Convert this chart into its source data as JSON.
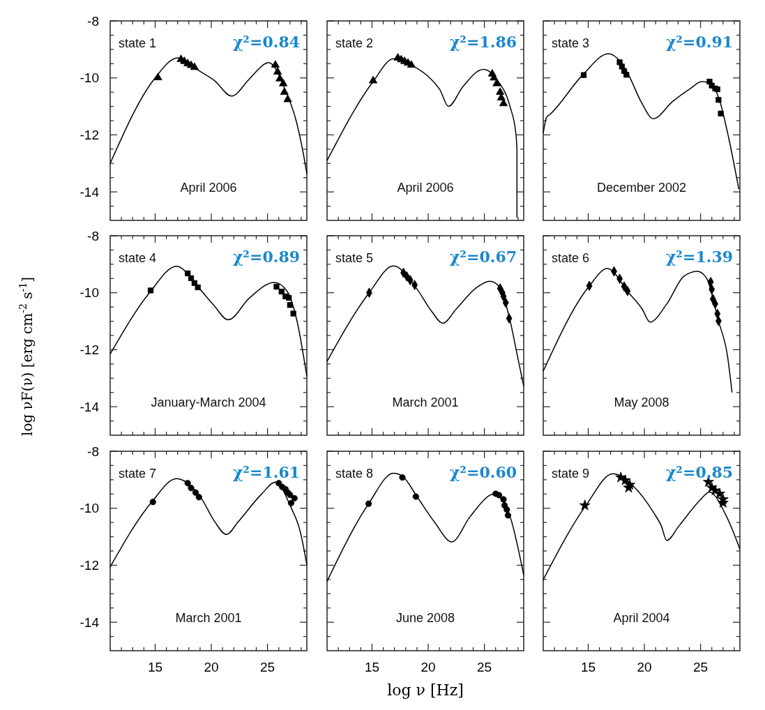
{
  "chart_data": [
    {
      "type": "line",
      "xlim": [
        11,
        28.5
      ],
      "ylim": [
        -15,
        -8
      ],
      "tick_labels": "y",
      "xticks": [
        {
          "value": 12,
          "label": null
        },
        {
          "value": 13,
          "label": null
        },
        {
          "value": 14,
          "label": null
        },
        15,
        {
          "value": 16,
          "label": null
        },
        {
          "value": 17,
          "label": null
        },
        {
          "value": 18,
          "label": null
        },
        {
          "value": 19,
          "label": null
        },
        20,
        {
          "value": 21,
          "label": null
        },
        {
          "value": 22,
          "label": null
        },
        {
          "value": 23,
          "label": null
        },
        {
          "value": 24,
          "label": null
        },
        25,
        {
          "value": 26,
          "label": null
        },
        {
          "value": 27,
          "label": null
        },
        {
          "value": 28,
          "label": null
        }
      ],
      "yticks": [
        -14,
        {
          "value": -14.5,
          "label": null
        },
        {
          "value": -13.5,
          "label": null
        },
        {
          "value": -13,
          "label": null
        },
        {
          "value": -12.5,
          "label": null
        },
        -12,
        {
          "value": -11.5,
          "label": null
        },
        {
          "value": -11,
          "label": null
        },
        {
          "value": -10.5,
          "label": null
        },
        -10,
        {
          "value": -9.5,
          "label": null
        },
        {
          "value": -9,
          "label": null
        },
        {
          "value": -8.5,
          "label": null
        },
        -8
      ],
      "annotations": [
        "state 1",
        "χ²=0.84",
        "April 2006"
      ],
      "series": [
        {
          "type": "line",
          "color": "#000000",
          "x": [
            11,
            14.94,
            17.0,
            18.7,
            20.3,
            21.8,
            23.4,
            24.9,
            25.1,
            26.6,
            27.6,
            28.43,
            28.5
          ],
          "values": [
            -13.0,
            -10.03,
            -9.3,
            -9.7,
            -10.1,
            -10.64,
            -10.03,
            -9.48,
            -9.46,
            -10.44,
            -11.58,
            -13.2,
            -13.37
          ]
        },
        {
          "type": "scatter",
          "color": "#000000",
          "marker": "triangle",
          "x": [
            15.25,
            17.3,
            17.6,
            17.9,
            18.2,
            18.5,
            25.7,
            25.9,
            26.1,
            26.4,
            26.5,
            26.8
          ],
          "values": [
            -9.99,
            -9.35,
            -9.42,
            -9.5,
            -9.56,
            -9.63,
            -9.55,
            -9.79,
            -10.03,
            -10.2,
            -10.5,
            -10.76
          ]
        }
      ]
    },
    {
      "type": "line",
      "xlim": [
        11,
        28.5
      ],
      "ylim": [
        -15,
        -8
      ],
      "tick_labels": false,
      "xticks": [
        {
          "value": 12,
          "label": null
        },
        {
          "value": 13,
          "label": null
        },
        {
          "value": 14,
          "label": null
        },
        15,
        {
          "value": 16,
          "label": null
        },
        {
          "value": 17,
          "label": null
        },
        {
          "value": 18,
          "label": null
        },
        {
          "value": 19,
          "label": null
        },
        20,
        {
          "value": 21,
          "label": null
        },
        {
          "value": 22,
          "label": null
        },
        {
          "value": 23,
          "label": null
        },
        {
          "value": 24,
          "label": null
        },
        25,
        {
          "value": 26,
          "label": null
        },
        {
          "value": 27,
          "label": null
        },
        {
          "value": 28,
          "label": null
        }
      ],
      "yticks": [
        -14,
        {
          "value": -14.5,
          "label": null
        },
        {
          "value": -13.5,
          "label": null
        },
        {
          "value": -13,
          "label": null
        },
        {
          "value": -12.5,
          "label": null
        },
        -12,
        {
          "value": -11.5,
          "label": null
        },
        {
          "value": -11,
          "label": null
        },
        {
          "value": -10.5,
          "label": null
        },
        -10,
        {
          "value": -9.5,
          "label": null
        },
        {
          "value": -9,
          "label": null
        },
        {
          "value": -8.5,
          "label": null
        },
        -8
      ],
      "annotations": [
        "state 2",
        "χ²=1.86",
        "April 2006"
      ],
      "series": [
        {
          "type": "line",
          "color": "#000000",
          "x": [
            11,
            15.1,
            16.9,
            18.5,
            20.3,
            21.05,
            21.8,
            23.1,
            24.9,
            26.2,
            27.3,
            27.8,
            27.9,
            27.9
          ],
          "values": [
            -12.9,
            -10.13,
            -9.33,
            -9.55,
            -10.06,
            -10.42,
            -11.0,
            -10.3,
            -9.7,
            -10.1,
            -11.03,
            -11.94,
            -12.55,
            -14.9
          ]
        },
        {
          "type": "scatter",
          "color": "#000000",
          "marker": "triangle",
          "x": [
            15.1,
            17.3,
            17.6,
            17.9,
            18.2,
            18.5,
            25.7,
            25.85,
            26.1,
            26.4,
            26.5,
            26.7
          ],
          "values": [
            -10.1,
            -9.3,
            -9.36,
            -9.42,
            -9.48,
            -9.55,
            -9.86,
            -10.0,
            -10.2,
            -10.5,
            -10.7,
            -10.9
          ]
        }
      ]
    },
    {
      "type": "line",
      "xlim": [
        11,
        28.5
      ],
      "ylim": [
        -15,
        -8
      ],
      "tick_labels": false,
      "xticks": [
        {
          "value": 12,
          "label": null
        },
        {
          "value": 13,
          "label": null
        },
        {
          "value": 14,
          "label": null
        },
        15,
        {
          "value": 16,
          "label": null
        },
        {
          "value": 17,
          "label": null
        },
        {
          "value": 18,
          "label": null
        },
        {
          "value": 19,
          "label": null
        },
        20,
        {
          "value": 21,
          "label": null
        },
        {
          "value": 22,
          "label": null
        },
        {
          "value": 23,
          "label": null
        },
        {
          "value": 24,
          "label": null
        },
        25,
        {
          "value": 26,
          "label": null
        },
        {
          "value": 27,
          "label": null
        },
        {
          "value": 28,
          "label": null
        }
      ],
      "yticks": [
        -14,
        {
          "value": -14.5,
          "label": null
        },
        {
          "value": -13.5,
          "label": null
        },
        {
          "value": -13,
          "label": null
        },
        {
          "value": -12.5,
          "label": null
        },
        -12,
        {
          "value": -11.5,
          "label": null
        },
        {
          "value": -11,
          "label": null
        },
        {
          "value": -10.5,
          "label": null
        },
        -10,
        {
          "value": -9.5,
          "label": null
        },
        {
          "value": -9,
          "label": null
        },
        {
          "value": -8.5,
          "label": null
        },
        -8
      ],
      "annotations": [
        "state 3",
        "χ²=0.91",
        "December 2002"
      ],
      "series": [
        {
          "type": "line",
          "color": "#000000",
          "x": [
            11,
            11.3,
            11.6,
            14.5,
            16.8,
            17.9,
            18.6,
            19.7,
            20.8,
            22.5,
            24.1,
            25.1,
            25.9,
            26.7,
            27.5,
            28.4
          ],
          "values": [
            -11.94,
            -11.38,
            -11.28,
            -9.9,
            -9.15,
            -9.45,
            -9.9,
            -10.83,
            -11.43,
            -10.83,
            -10.37,
            -10.13,
            -10.2,
            -10.8,
            -12.1,
            -13.9
          ]
        },
        {
          "type": "scatter",
          "color": "#000000",
          "marker": "square",
          "x": [
            14.6,
            17.8,
            18.0,
            18.2,
            18.4,
            25.8,
            26.0,
            26.3,
            26.5,
            26.6,
            26.8
          ],
          "values": [
            -9.9,
            -9.45,
            -9.6,
            -9.76,
            -9.89,
            -10.13,
            -10.27,
            -10.37,
            -10.4,
            -10.77,
            -11.25
          ]
        }
      ]
    },
    {
      "type": "line",
      "xlim": [
        11,
        28.5
      ],
      "ylim": [
        -15,
        -8
      ],
      "tick_labels": "y",
      "ylabel": "log νF(ν) [erg cm$^{-2}$ s$^{-1}$]",
      "xticks": [
        {
          "value": 12,
          "label": null
        },
        {
          "value": 13,
          "label": null
        },
        {
          "value": 14,
          "label": null
        },
        15,
        {
          "value": 16,
          "label": null
        },
        {
          "value": 17,
          "label": null
        },
        {
          "value": 18,
          "label": null
        },
        {
          "value": 19,
          "label": null
        },
        20,
        {
          "value": 21,
          "label": null
        },
        {
          "value": 22,
          "label": null
        },
        {
          "value": 23,
          "label": null
        },
        {
          "value": 24,
          "label": null
        },
        25,
        {
          "value": 26,
          "label": null
        },
        {
          "value": 27,
          "label": null
        },
        {
          "value": 28,
          "label": null
        }
      ],
      "yticks": [
        -14,
        {
          "value": -14.5,
          "label": null
        },
        {
          "value": -13.5,
          "label": null
        },
        {
          "value": -13,
          "label": null
        },
        {
          "value": -12.5,
          "label": null
        },
        -12,
        {
          "value": -11.5,
          "label": null
        },
        {
          "value": -11,
          "label": null
        },
        {
          "value": -10.5,
          "label": null
        },
        -10,
        {
          "value": -9.5,
          "label": null
        },
        {
          "value": -9,
          "label": null
        },
        {
          "value": -8.5,
          "label": null
        },
        -8
      ],
      "annotations": [
        "state 4",
        "χ²=0.89",
        "January-March 2004"
      ],
      "series": [
        {
          "type": "line",
          "color": "#000000",
          "x": [
            11,
            14.5,
            16.9,
            18.8,
            20.2,
            21.5,
            23.4,
            25.6,
            26.7,
            27.6,
            28.5
          ],
          "values": [
            -12.15,
            -10.0,
            -9.07,
            -9.79,
            -10.43,
            -10.95,
            -10.18,
            -9.64,
            -9.92,
            -10.95,
            -12.93
          ]
        },
        {
          "type": "scatter",
          "color": "#000000",
          "marker": "square",
          "x": [
            14.6,
            17.9,
            18.2,
            18.5,
            18.8,
            25.8,
            26.25,
            26.6,
            26.9,
            27.0,
            27.3
          ],
          "values": [
            -9.92,
            -9.32,
            -9.49,
            -9.66,
            -9.81,
            -9.79,
            -9.96,
            -10.13,
            -10.18,
            -10.43,
            -10.73
          ]
        }
      ]
    },
    {
      "type": "line",
      "xlim": [
        11,
        28.5
      ],
      "ylim": [
        -15,
        -8
      ],
      "tick_labels": false,
      "xticks": [
        {
          "value": 12,
          "label": null
        },
        {
          "value": 13,
          "label": null
        },
        {
          "value": 14,
          "label": null
        },
        15,
        {
          "value": 16,
          "label": null
        },
        {
          "value": 17,
          "label": null
        },
        {
          "value": 18,
          "label": null
        },
        {
          "value": 19,
          "label": null
        },
        20,
        {
          "value": 21,
          "label": null
        },
        {
          "value": 22,
          "label": null
        },
        {
          "value": 23,
          "label": null
        },
        {
          "value": 24,
          "label": null
        },
        25,
        {
          "value": 26,
          "label": null
        },
        {
          "value": 27,
          "label": null
        },
        {
          "value": 28,
          "label": null
        }
      ],
      "yticks": [
        -14,
        {
          "value": -14.5,
          "label": null
        },
        {
          "value": -13.5,
          "label": null
        },
        {
          "value": -13,
          "label": null
        },
        {
          "value": -12.5,
          "label": null
        },
        -12,
        {
          "value": -11.5,
          "label": null
        },
        {
          "value": -11,
          "label": null
        },
        {
          "value": -10.5,
          "label": null
        },
        -10,
        {
          "value": -9.5,
          "label": null
        },
        {
          "value": -9,
          "label": null
        },
        {
          "value": -8.5,
          "label": null
        },
        -8
      ],
      "annotations": [
        "state 5",
        "χ²=0.67",
        "March 2001"
      ],
      "series": [
        {
          "type": "line",
          "color": "#000000",
          "x": [
            11,
            14.75,
            16.9,
            19.0,
            20.3,
            21.3,
            22.5,
            24.3,
            25.5,
            26.3,
            27.2,
            27.9,
            28.5
          ],
          "values": [
            -12.41,
            -10.0,
            -9.06,
            -9.87,
            -10.65,
            -11.07,
            -10.57,
            -9.82,
            -9.6,
            -9.78,
            -10.83,
            -12.14,
            -13.28
          ]
        },
        {
          "type": "scatter",
          "color": "#000000",
          "marker": "diamond",
          "x": [
            14.75,
            17.8,
            18.1,
            18.4,
            18.8,
            26.4,
            26.6,
            26.7,
            26.9,
            27.2
          ],
          "values": [
            -10.0,
            -9.3,
            -9.43,
            -9.56,
            -9.73,
            -9.85,
            -10.0,
            -10.13,
            -10.35,
            -10.9
          ]
        }
      ]
    },
    {
      "type": "line",
      "xlim": [
        11,
        28.5
      ],
      "ylim": [
        -15,
        -8
      ],
      "tick_labels": false,
      "xticks": [
        {
          "value": 12,
          "label": null
        },
        {
          "value": 13,
          "label": null
        },
        {
          "value": 14,
          "label": null
        },
        15,
        {
          "value": 16,
          "label": null
        },
        {
          "value": 17,
          "label": null
        },
        {
          "value": 18,
          "label": null
        },
        {
          "value": 19,
          "label": null
        },
        20,
        {
          "value": 21,
          "label": null
        },
        {
          "value": 22,
          "label": null
        },
        {
          "value": 23,
          "label": null
        },
        {
          "value": 24,
          "label": null
        },
        25,
        {
          "value": 26,
          "label": null
        },
        {
          "value": 27,
          "label": null
        },
        {
          "value": 28,
          "label": null
        }
      ],
      "yticks": [
        -14,
        {
          "value": -14.5,
          "label": null
        },
        {
          "value": -13.5,
          "label": null
        },
        {
          "value": -13,
          "label": null
        },
        {
          "value": -12.5,
          "label": null
        },
        -12,
        {
          "value": -11.5,
          "label": null
        },
        {
          "value": -11,
          "label": null
        },
        {
          "value": -10.5,
          "label": null
        },
        -10,
        {
          "value": -9.5,
          "label": null
        },
        {
          "value": -9,
          "label": null
        },
        {
          "value": -8.5,
          "label": null
        },
        -8
      ],
      "annotations": [
        "state 6",
        "χ²=1.39",
        "May 2008"
      ],
      "series": [
        {
          "type": "line",
          "color": "#000000",
          "x": [
            11,
            15.1,
            16.7,
            18.6,
            19.8,
            20.5,
            22.0,
            23.5,
            24.7,
            25.5,
            26.6,
            27.4,
            27.8
          ],
          "values": [
            -12.75,
            -9.76,
            -9.15,
            -10.0,
            -10.57,
            -11.03,
            -10.39,
            -9.43,
            -9.25,
            -9.47,
            -11.0,
            -12.23,
            -13.5
          ]
        },
        {
          "type": "scatter",
          "color": "#000000",
          "marker": "diamond",
          "x": [
            15.1,
            17.3,
            17.8,
            18.2,
            18.5,
            25.9,
            26.0,
            26.1,
            26.3,
            26.5,
            26.6
          ],
          "values": [
            -9.76,
            -9.25,
            -9.51,
            -9.78,
            -9.94,
            -9.62,
            -9.88,
            -10.22,
            -10.39,
            -10.74,
            -10.99
          ]
        }
      ]
    },
    {
      "type": "line",
      "xlim": [
        11,
        28.5
      ],
      "ylim": [
        -15,
        -8
      ],
      "xticks": [
        {
          "value": 12,
          "label": null
        },
        {
          "value": 13,
          "label": null
        },
        {
          "value": 14,
          "label": null
        },
        15,
        {
          "value": 16,
          "label": null
        },
        {
          "value": 17,
          "label": null
        },
        {
          "value": 18,
          "label": null
        },
        {
          "value": 19,
          "label": null
        },
        20,
        {
          "value": 21,
          "label": null
        },
        {
          "value": 22,
          "label": null
        },
        {
          "value": 23,
          "label": null
        },
        {
          "value": 24,
          "label": null
        },
        25,
        {
          "value": 26,
          "label": null
        },
        {
          "value": 27,
          "label": null
        },
        {
          "value": 28,
          "label": null
        }
      ],
      "yticks": [
        -14,
        {
          "value": -14.5,
          "label": null
        },
        {
          "value": -13.5,
          "label": null
        },
        {
          "value": -13,
          "label": null
        },
        {
          "value": -12.5,
          "label": null
        },
        -12,
        {
          "value": -11.5,
          "label": null
        },
        {
          "value": -11,
          "label": null
        },
        {
          "value": -10.5,
          "label": null
        },
        -10,
        {
          "value": -9.5,
          "label": null
        },
        {
          "value": -9,
          "label": null
        },
        {
          "value": -8.5,
          "label": null
        },
        -8
      ],
      "annotations": [
        "state 7",
        "χ²=1.61",
        "March 2001"
      ],
      "series": [
        {
          "type": "line",
          "color": "#000000",
          "x": [
            11,
            14.7,
            16.9,
            17.6,
            19.1,
            20.3,
            21.35,
            22.4,
            24.5,
            25.7,
            27.1,
            27.9,
            28.5
          ],
          "values": [
            -12.06,
            -9.78,
            -8.96,
            -9.04,
            -9.65,
            -10.47,
            -10.92,
            -10.47,
            -9.49,
            -9.08,
            -9.98,
            -10.8,
            -11.98
          ]
        },
        {
          "type": "scatter",
          "color": "#000000",
          "marker": "circle",
          "x": [
            14.8,
            17.9,
            18.2,
            18.6,
            18.9,
            26.0,
            26.3,
            26.6,
            26.8,
            27.0,
            27.4,
            27.1
          ],
          "values": [
            -9.78,
            -9.12,
            -9.29,
            -9.45,
            -9.61,
            -9.12,
            -9.25,
            -9.33,
            -9.45,
            -9.53,
            -9.65,
            -9.82
          ]
        }
      ]
    },
    {
      "type": "line",
      "xlim": [
        11,
        28.5
      ],
      "ylim": [
        -15,
        -8
      ],
      "tick_labels": "x",
      "xlabel": "log ν [Hz]",
      "xticks": [
        {
          "value": 12,
          "label": null
        },
        {
          "value": 13,
          "label": null
        },
        {
          "value": 14,
          "label": null
        },
        15,
        {
          "value": 16,
          "label": null
        },
        {
          "value": 17,
          "label": null
        },
        {
          "value": 18,
          "label": null
        },
        {
          "value": 19,
          "label": null
        },
        20,
        {
          "value": 21,
          "label": null
        },
        {
          "value": 22,
          "label": null
        },
        {
          "value": 23,
          "label": null
        },
        {
          "value": 24,
          "label": null
        },
        25,
        {
          "value": 26,
          "label": null
        },
        {
          "value": 27,
          "label": null
        },
        {
          "value": 28,
          "label": null
        }
      ],
      "yticks": [
        -14,
        {
          "value": -14.5,
          "label": null
        },
        {
          "value": -13.5,
          "label": null
        },
        {
          "value": -13,
          "label": null
        },
        {
          "value": -12.5,
          "label": null
        },
        -12,
        {
          "value": -11.5,
          "label": null
        },
        {
          "value": -11,
          "label": null
        },
        {
          "value": -10.5,
          "label": null
        },
        -10,
        {
          "value": -9.5,
          "label": null
        },
        {
          "value": -9,
          "label": null
        },
        {
          "value": -8.5,
          "label": null
        },
        -8
      ],
      "annotations": [
        "state 8",
        "χ²=0.60",
        "June 2008"
      ],
      "series": [
        {
          "type": "line",
          "color": "#000000",
          "x": [
            11,
            14.7,
            16.9,
            17.7,
            19.0,
            20.6,
            22.1,
            23.7,
            25.5,
            25.6,
            26.3,
            27.3,
            28.5
          ],
          "values": [
            -12.56,
            -9.84,
            -8.77,
            -8.87,
            -9.59,
            -10.51,
            -11.18,
            -10.31,
            -9.54,
            -9.52,
            -9.59,
            -10.31,
            -12.35
          ]
        },
        {
          "type": "scatter",
          "color": "#000000",
          "marker": "circle",
          "x": [
            14.7,
            17.7,
            18.9,
            26.0,
            26.3,
            26.7,
            26.8,
            27.0,
            27.1
          ],
          "values": [
            -9.84,
            -8.92,
            -9.59,
            -9.49,
            -9.54,
            -9.69,
            -9.9,
            -10.05,
            -10.25
          ]
        }
      ]
    },
    {
      "type": "line",
      "xlim": [
        11,
        28.5
      ],
      "ylim": [
        -15,
        -8
      ],
      "tick_labels": "x",
      "xticks": [
        {
          "value": 12,
          "label": null
        },
        {
          "value": 13,
          "label": null
        },
        {
          "value": 14,
          "label": null
        },
        15,
        {
          "value": 16,
          "label": null
        },
        {
          "value": 17,
          "label": null
        },
        {
          "value": 18,
          "label": null
        },
        {
          "value": 19,
          "label": null
        },
        20,
        {
          "value": 21,
          "label": null
        },
        {
          "value": 22,
          "label": null
        },
        {
          "value": 23,
          "label": null
        },
        {
          "value": 24,
          "label": null
        },
        25,
        {
          "value": 26,
          "label": null
        },
        {
          "value": 27,
          "label": null
        },
        {
          "value": 28,
          "label": null
        }
      ],
      "yticks": [
        -14,
        {
          "value": -14.5,
          "label": null
        },
        {
          "value": -13.5,
          "label": null
        },
        {
          "value": -13,
          "label": null
        },
        {
          "value": -12.5,
          "label": null
        },
        -12,
        {
          "value": -11.5,
          "label": null
        },
        {
          "value": -11,
          "label": null
        },
        {
          "value": -10.5,
          "label": null
        },
        -10,
        {
          "value": -9.5,
          "label": null
        },
        {
          "value": -9,
          "label": null
        },
        {
          "value": -8.5,
          "label": null
        },
        -8
      ],
      "annotations": [
        "state 9",
        "χ²=0.85",
        "April 2004"
      ],
      "series": [
        {
          "type": "line",
          "color": "#000000",
          "x": [
            11,
            14.8,
            17.2,
            18.9,
            20.9,
            21.5,
            21.99,
            23.1,
            24.9,
            25.8,
            27.2,
            28.5
          ],
          "values": [
            -12.51,
            -9.9,
            -8.79,
            -9.18,
            -10.2,
            -10.61,
            -11.13,
            -10.61,
            -9.74,
            -9.43,
            -10.2,
            -11.43
          ]
        },
        {
          "type": "scatter",
          "color": "#000000",
          "marker": "star",
          "x": [
            14.7,
            17.9,
            18.3,
            18.7,
            18.6,
            25.7,
            26.0,
            26.3,
            26.7,
            27.0,
            27.0
          ],
          "values": [
            -9.9,
            -8.92,
            -9.02,
            -9.18,
            -9.28,
            -9.08,
            -9.28,
            -9.38,
            -9.49,
            -9.69,
            -9.81
          ]
        }
      ]
    }
  ]
}
